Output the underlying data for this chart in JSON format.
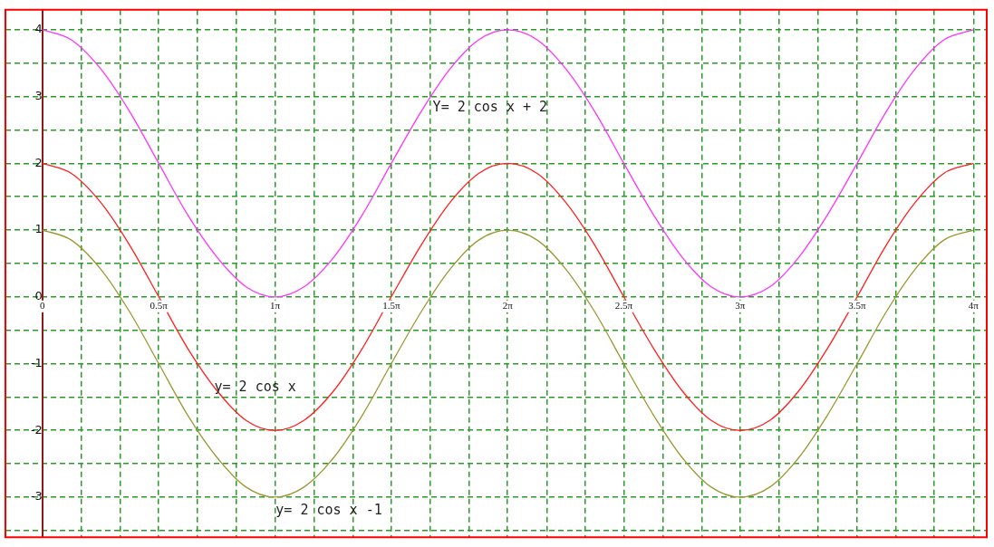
{
  "chart_data": {
    "type": "line",
    "x": [
      0,
      0.39,
      0.79,
      1.18,
      1.57,
      1.96,
      2.36,
      2.75,
      3.14,
      3.53,
      3.93,
      4.32,
      4.71,
      5.11,
      5.5,
      5.89,
      6.28,
      6.68,
      7.07,
      7.46,
      7.85,
      8.25,
      8.64,
      9.03,
      9.42,
      9.82,
      10.21,
      10.6,
      11,
      11.39,
      11.78,
      12.17,
      12.57
    ],
    "series": [
      {
        "name": "Y= 2 cos x + 2",
        "color": "#ff33ff",
        "values": [
          4,
          3.85,
          3.41,
          2.77,
          2,
          1.23,
          0.59,
          0.15,
          0,
          0.15,
          0.59,
          1.23,
          2,
          2.77,
          3.41,
          3.85,
          4,
          3.85,
          3.41,
          2.77,
          2,
          1.23,
          0.59,
          0.15,
          0,
          0.15,
          0.59,
          1.23,
          2,
          2.77,
          3.41,
          3.85,
          4
        ]
      },
      {
        "name": "y= 2 cos x",
        "color": "#ff2020",
        "values": [
          2,
          1.85,
          1.41,
          0.77,
          0,
          -0.77,
          -1.41,
          -1.85,
          -2,
          -1.85,
          -1.41,
          -0.77,
          0,
          0.77,
          1.41,
          1.85,
          2,
          1.85,
          1.41,
          0.77,
          0,
          -0.77,
          -1.41,
          -1.85,
          -2,
          -1.85,
          -1.41,
          -0.77,
          0,
          0.77,
          1.41,
          1.85,
          2
        ]
      },
      {
        "name": "y= 2 cos x -1",
        "color": "#999933",
        "values": [
          1,
          0.85,
          0.41,
          -0.23,
          -1,
          -1.77,
          -2.41,
          -2.85,
          -3,
          -2.85,
          -2.41,
          -1.77,
          -1,
          -0.23,
          0.41,
          0.85,
          1,
          0.85,
          0.41,
          -0.23,
          -1,
          -1.77,
          -2.41,
          -2.85,
          -3,
          -2.85,
          -2.41,
          -1.77,
          -1,
          -0.23,
          0.41,
          0.85,
          1
        ]
      }
    ],
    "xlim": [
      -0.5,
      12.75
    ],
    "xticks": [
      {
        "value": 0,
        "label": "0"
      },
      {
        "value": 0.52,
        "label": null
      },
      {
        "value": 1.05,
        "label": null
      },
      {
        "value": 1.57,
        "label": "0.5π"
      },
      {
        "value": 2.09,
        "label": null
      },
      {
        "value": 2.62,
        "label": null
      },
      {
        "value": 3.14,
        "label": "1π"
      },
      {
        "value": 3.67,
        "label": null
      },
      {
        "value": 4.19,
        "label": null
      },
      {
        "value": 4.71,
        "label": "1.5π"
      },
      {
        "value": 5.24,
        "label": null
      },
      {
        "value": 5.76,
        "label": null
      },
      {
        "value": 6.28,
        "label": "2π"
      },
      {
        "value": 6.81,
        "label": null
      },
      {
        "value": 7.33,
        "label": null
      },
      {
        "value": 7.85,
        "label": "2.5π"
      },
      {
        "value": 8.38,
        "label": null
      },
      {
        "value": 8.9,
        "label": null
      },
      {
        "value": 9.42,
        "label": "3π"
      },
      {
        "value": 9.95,
        "label": null
      },
      {
        "value": 10.47,
        "label": null
      },
      {
        "value": 11,
        "label": "3.5π"
      },
      {
        "value": 11.52,
        "label": null
      },
      {
        "value": 12.04,
        "label": null
      },
      {
        "value": 12.57,
        "label": "4π"
      }
    ],
    "ylim": [
      -3.6,
      4.3
    ],
    "yticks": [
      {
        "value": -3.5,
        "label": null
      },
      -3,
      {
        "value": -2.5,
        "label": null
      },
      -2,
      {
        "value": -1.5,
        "label": null
      },
      -1,
      {
        "value": -0.5,
        "label": null
      },
      0,
      {
        "value": 0.5,
        "label": null
      },
      1,
      {
        "value": 1.5,
        "label": null
      },
      2,
      {
        "value": 2.5,
        "label": null
      },
      3,
      {
        "value": 3.5,
        "label": null
      },
      4
    ],
    "grid": true,
    "legend": false,
    "marker": "none",
    "line_style": "solid"
  }
}
